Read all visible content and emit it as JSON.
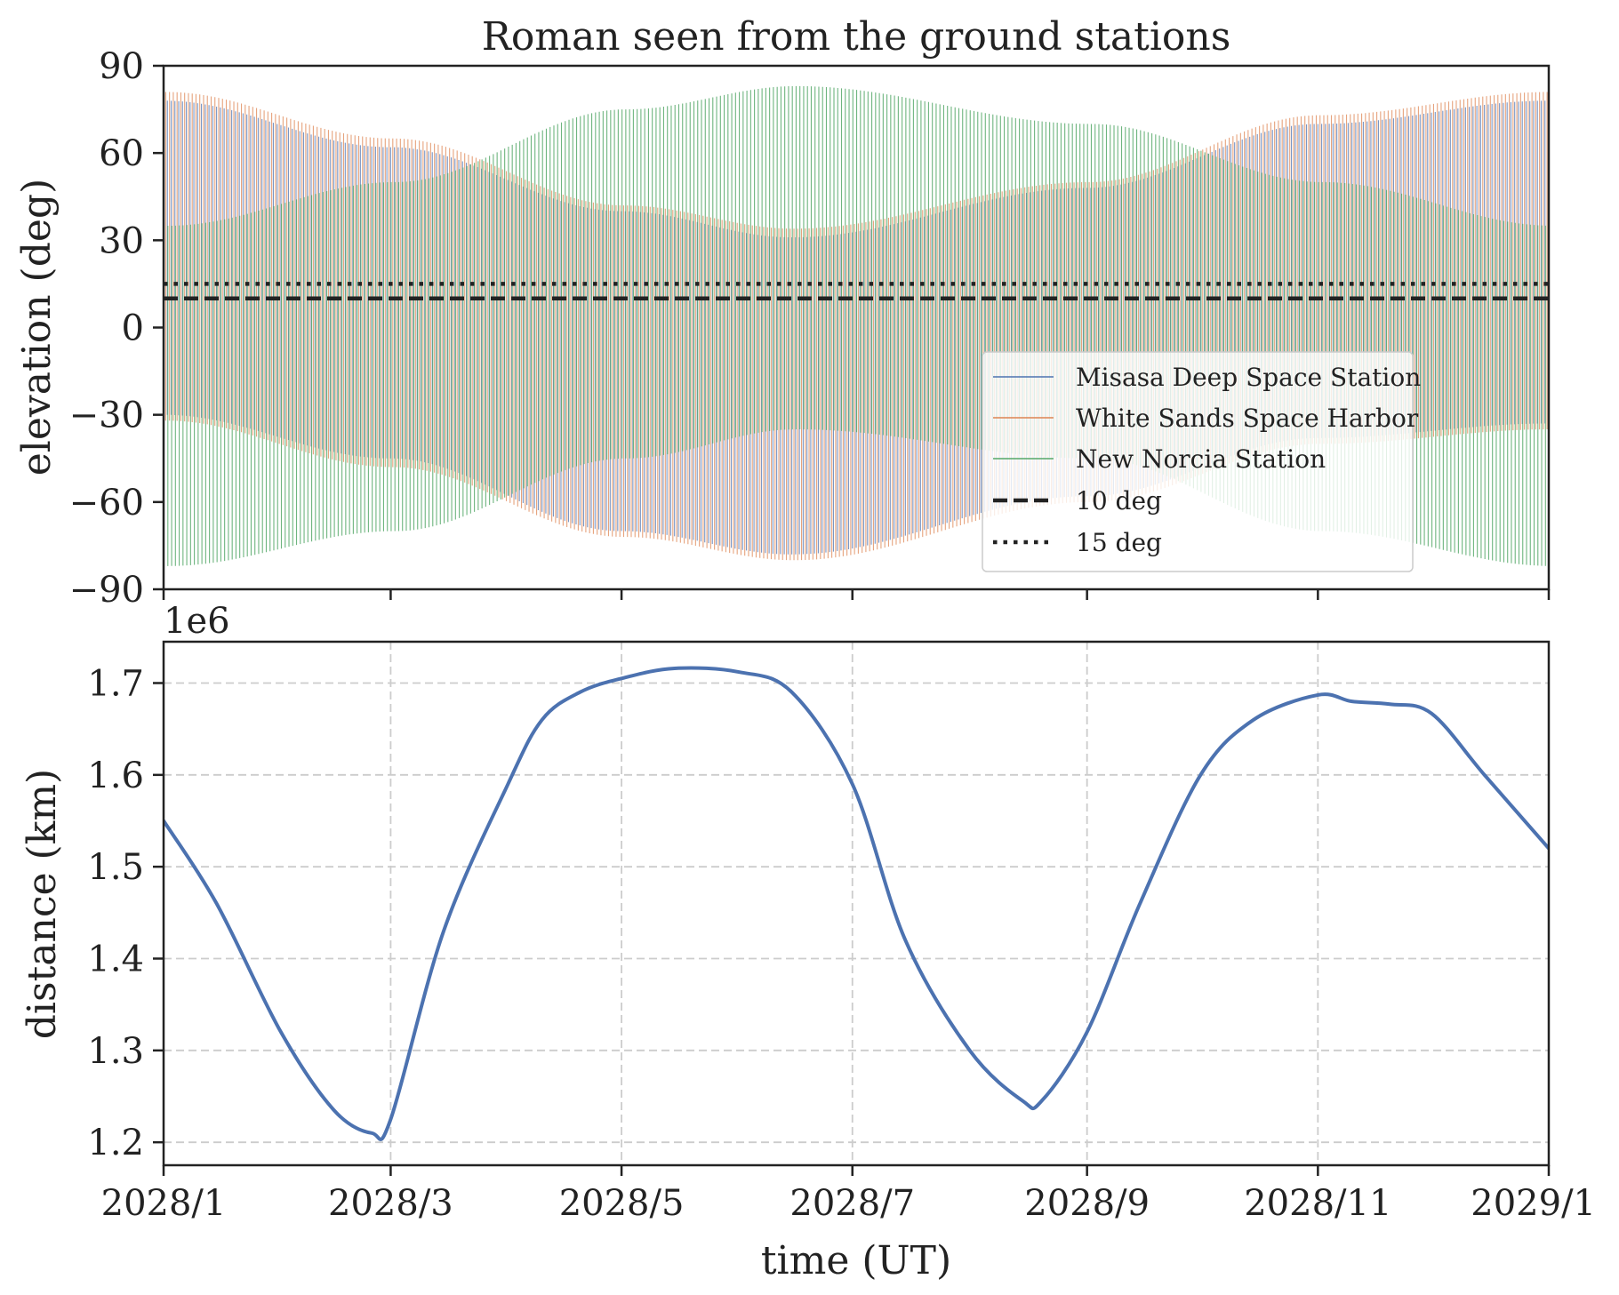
{
  "chart_data": [
    {
      "type": "line",
      "title": "Roman seen from the ground stations",
      "xlabel": "",
      "ylabel": "elevation (deg)",
      "xlim": [
        "2028/1",
        "2029/1"
      ],
      "ylim": [
        -90,
        90
      ],
      "yticks": [
        90,
        60,
        30,
        0,
        -30,
        -60,
        -90
      ],
      "ytick_labels": [
        "90",
        "60",
        "30",
        "0",
        "−30",
        "−60",
        "−90"
      ],
      "grid": false,
      "legend_position": "lower-right",
      "series": [
        {
          "name": "Misasa Deep Space Station",
          "color": "#4c72b0",
          "style": "solid",
          "description": "daily oscillation between a lower and upper envelope",
          "upper_envelope": {
            "x": [
              "2028/1",
              "2028/3",
              "2028/5",
              "2028/6/15",
              "2028/9",
              "2028/11",
              "2029/1"
            ],
            "y": [
              78,
              62,
              40,
              31,
              48,
              70,
              78
            ]
          },
          "lower_envelope": {
            "x": [
              "2028/1",
              "2028/3",
              "2028/5",
              "2028/6/15",
              "2028/9",
              "2028/11",
              "2029/1"
            ],
            "y": [
              -30,
              -45,
              -70,
              -78,
              -58,
              -38,
              -33
            ]
          }
        },
        {
          "name": "White Sands Space Harbor",
          "color": "#dd8452",
          "style": "solid",
          "upper_envelope": {
            "x": [
              "2028/1",
              "2028/3",
              "2028/5",
              "2028/6/15",
              "2028/9",
              "2028/11",
              "2029/1"
            ],
            "y": [
              81,
              65,
              42,
              34,
              50,
              73,
              81
            ]
          },
          "lower_envelope": {
            "x": [
              "2028/1",
              "2028/3",
              "2028/5",
              "2028/6/15",
              "2028/9",
              "2028/11",
              "2029/1"
            ],
            "y": [
              -32,
              -48,
              -72,
              -80,
              -60,
              -40,
              -35
            ]
          }
        },
        {
          "name": "New Norcia Station",
          "color": "#55a868",
          "style": "solid",
          "upper_envelope": {
            "x": [
              "2028/1",
              "2028/3",
              "2028/5",
              "2028/6/15",
              "2028/9",
              "2028/11",
              "2029/1"
            ],
            "y": [
              35,
              50,
              75,
              83,
              70,
              50,
              35
            ]
          },
          "lower_envelope": {
            "x": [
              "2028/1",
              "2028/3",
              "2028/5",
              "2028/6/15",
              "2028/9",
              "2028/11",
              "2029/1"
            ],
            "y": [
              -82,
              -70,
              -45,
              -35,
              -45,
              -70,
              -82
            ]
          }
        },
        {
          "name": "10 deg",
          "color": "#222222",
          "style": "dashed",
          "y": 10
        },
        {
          "name": "15 deg",
          "color": "#222222",
          "style": "dotted",
          "y": 15
        }
      ]
    },
    {
      "type": "line",
      "title": "",
      "xlabel": "time (UT)",
      "ylabel": "distance (km)",
      "offset_label": "1e6",
      "x_tick_labels": [
        "2028/1",
        "2028/3",
        "2028/5",
        "2028/7",
        "2028/9",
        "2028/11",
        "2029/1"
      ],
      "ylim": [
        1.175,
        1.745
      ],
      "yticks": [
        1.2,
        1.3,
        1.4,
        1.5,
        1.6,
        1.7
      ],
      "ytick_labels": [
        "1.2",
        "1.3",
        "1.4",
        "1.5",
        "1.6",
        "1.7"
      ],
      "grid": true,
      "series": [
        {
          "name": "",
          "color": "#4c72b0",
          "x": [
            "2028/1/1",
            "2028/1/15",
            "2028/2/1",
            "2028/2/15",
            "2028/2/25",
            "2028/3/1",
            "2028/3/15",
            "2028/4/1",
            "2028/4/10",
            "2028/4/20",
            "2028/5/1",
            "2028/5/15",
            "2028/6/1",
            "2028/6/15",
            "2028/7/1",
            "2028/7/15",
            "2028/8/1",
            "2028/8/15",
            "2028/8/20",
            "2028/9/1",
            "2028/9/15",
            "2028/10/1",
            "2028/10/15",
            "2028/11/1",
            "2028/11/10",
            "2028/11/20",
            "2028/12/1",
            "2028/12/15",
            "2029/1/1"
          ],
          "y": [
            1.55,
            1.46,
            1.32,
            1.235,
            1.21,
            1.225,
            1.43,
            1.59,
            1.66,
            1.69,
            1.705,
            1.716,
            1.712,
            1.69,
            1.59,
            1.42,
            1.3,
            1.245,
            1.245,
            1.32,
            1.46,
            1.6,
            1.66,
            1.687,
            1.68,
            1.677,
            1.667,
            1.6,
            1.52
          ]
        }
      ]
    }
  ]
}
